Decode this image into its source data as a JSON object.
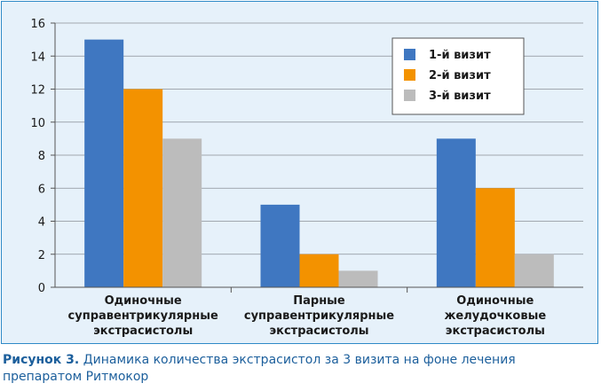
{
  "chart_data": {
    "type": "bar",
    "categories": [
      [
        "Одиночные",
        "суправентрикулярные",
        "экстрасистолы"
      ],
      [
        "Парные",
        "суправентрикулярные",
        "экстрасистолы"
      ],
      [
        "Одиночные",
        "желудочковые",
        "экстрасистолы"
      ]
    ],
    "series": [
      {
        "name": "1-й визит",
        "values": [
          15,
          5,
          9
        ],
        "color": "#3f77c1"
      },
      {
        "name": "2-й визит",
        "values": [
          12,
          2,
          6
        ],
        "color": "#f39200"
      },
      {
        "name": "3-й визит",
        "values": [
          9,
          1,
          2
        ],
        "color": "#bcbcbc"
      }
    ],
    "ylim": [
      0,
      16
    ],
    "yticks": [
      "0",
      "2",
      "4",
      "6",
      "8",
      "10",
      "12",
      "14",
      "16"
    ],
    "grid": true,
    "legend_position": "top-right"
  },
  "caption": {
    "label": "Рисунок 3.",
    "text": "Динамика количества экстрасистол за 3 визита на фоне лечения препаратом Ритмокор"
  }
}
